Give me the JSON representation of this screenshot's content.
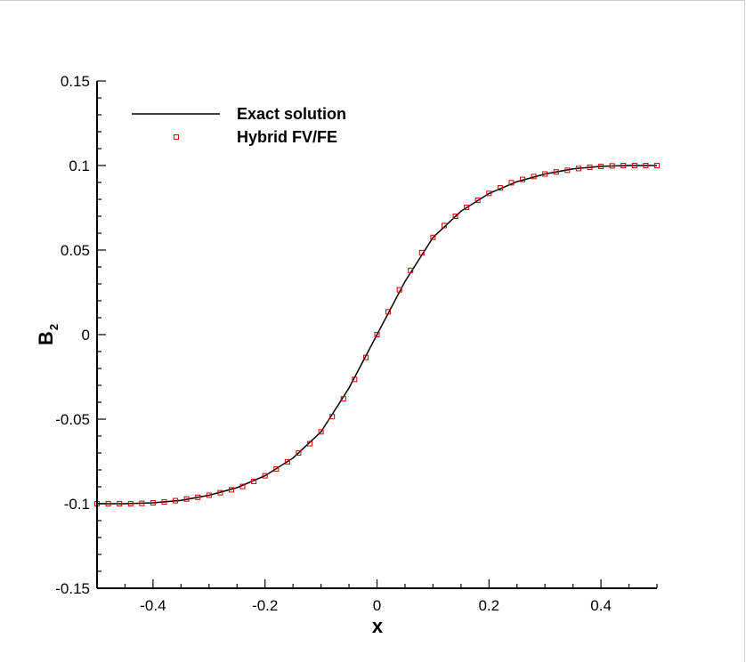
{
  "chart_data": {
    "type": "line",
    "xlabel": "x",
    "ylabel": {
      "main": "B",
      "subscript": "2"
    },
    "xlim": [
      -0.5,
      0.5
    ],
    "ylim": [
      -0.15,
      0.15
    ],
    "x_ticks": [
      {
        "value": -0.4,
        "label": "-0.4"
      },
      {
        "value": -0.2,
        "label": "-0.2"
      },
      {
        "value": 0,
        "label": "0"
      },
      {
        "value": 0.2,
        "label": "0.2"
      },
      {
        "value": 0.4,
        "label": "0.4"
      }
    ],
    "y_ticks": [
      {
        "value": -0.15,
        "label": "-0.15"
      },
      {
        "value": -0.1,
        "label": "-0.1"
      },
      {
        "value": -0.05,
        "label": "-0.05"
      },
      {
        "value": 0,
        "label": "0"
      },
      {
        "value": 0.05,
        "label": "0.05"
      },
      {
        "value": 0.1,
        "label": "0.1"
      },
      {
        "value": 0.15,
        "label": "0.15"
      }
    ],
    "grid": false,
    "legend_position": "top-left",
    "series": [
      {
        "name": "Exact solution",
        "style": "line",
        "color": "#000000",
        "x": [
          -0.5,
          -0.45,
          -0.4,
          -0.35,
          -0.3,
          -0.25,
          -0.2,
          -0.15,
          -0.1,
          -0.05,
          0,
          0.05,
          0.1,
          0.15,
          0.2,
          0.25,
          0.3,
          0.35,
          0.4,
          0.45,
          0.5
        ],
        "y": [
          -0.1,
          -0.1,
          -0.0995,
          -0.098,
          -0.095,
          -0.0905,
          -0.0835,
          -0.073,
          -0.0575,
          -0.0315,
          0,
          0.0315,
          0.0575,
          0.073,
          0.0835,
          0.0905,
          0.095,
          0.098,
          0.0995,
          0.1,
          0.1
        ]
      },
      {
        "name": "Hybrid FV/FE",
        "style": "markers",
        "marker": "square",
        "color": "#cc0000",
        "x": [
          -0.5,
          -0.48,
          -0.46,
          -0.44,
          -0.42,
          -0.4,
          -0.38,
          -0.36,
          -0.34,
          -0.32,
          -0.3,
          -0.28,
          -0.26,
          -0.24,
          -0.22,
          -0.2,
          -0.18,
          -0.16,
          -0.14,
          -0.12,
          -0.1,
          -0.08,
          -0.06,
          -0.04,
          -0.02,
          0,
          0.02,
          0.04,
          0.06,
          0.08,
          0.1,
          0.12,
          0.14,
          0.16,
          0.18,
          0.2,
          0.22,
          0.24,
          0.26,
          0.28,
          0.3,
          0.32,
          0.34,
          0.36,
          0.38,
          0.4,
          0.42,
          0.44,
          0.46,
          0.48,
          0.5
        ],
        "y": [
          -0.1,
          -0.1,
          -0.1,
          -0.1,
          -0.0998,
          -0.0995,
          -0.099,
          -0.0982,
          -0.0972,
          -0.0962,
          -0.095,
          -0.0935,
          -0.0918,
          -0.0898,
          -0.0868,
          -0.0835,
          -0.0795,
          -0.0752,
          -0.07,
          -0.0645,
          -0.0575,
          -0.0485,
          -0.038,
          -0.0265,
          -0.0135,
          0,
          0.0135,
          0.0265,
          0.038,
          0.0485,
          0.0575,
          0.0645,
          0.07,
          0.0752,
          0.0795,
          0.0835,
          0.0868,
          0.0898,
          0.0918,
          0.0935,
          0.095,
          0.0962,
          0.0972,
          0.0982,
          0.099,
          0.0995,
          0.0998,
          0.1,
          0.1,
          0.1,
          0.1
        ]
      }
    ]
  }
}
